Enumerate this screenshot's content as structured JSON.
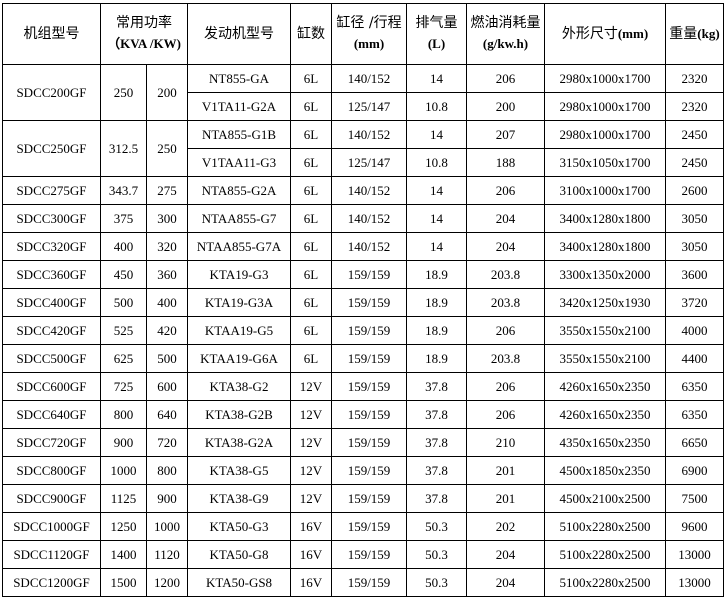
{
  "headers": {
    "model": "机组型号",
    "power": "常用功率",
    "power_unit": "（KVA /KW)",
    "engine": "发动机型号",
    "cylinders": "缸数",
    "bore": "缸径 /行程",
    "bore_unit": "(mm)",
    "displacement": "排气量",
    "displacement_unit": "(L)",
    "fuel": "燃油消耗量",
    "fuel_unit": "(g/kw.h)",
    "dimensions": "外形尺寸",
    "dimensions_unit": "(mm)",
    "weight": "重量",
    "weight_unit": "(kg)"
  },
  "groups": [
    {
      "model": "SDCC200GF",
      "kva": "250",
      "kw": "200",
      "engines": [
        {
          "engine": "NT855-GA",
          "cyl": "6L",
          "bore": "140/152",
          "disp": "14",
          "fuel": "206",
          "dim": "2980x1000x1700",
          "weight": "2320"
        },
        {
          "engine": "V1TA11-G2A",
          "cyl": "6L",
          "bore": "125/147",
          "disp": "10.8",
          "fuel": "200",
          "dim": "2980x1000x1700",
          "weight": "2320"
        }
      ]
    },
    {
      "model": "SDCC250GF",
      "kva": "312.5",
      "kw": "250",
      "engines": [
        {
          "engine": "NTA855-G1B",
          "cyl": "6L",
          "bore": "140/152",
          "disp": "14",
          "fuel": "207",
          "dim": "2980x1000x1700",
          "weight": "2450"
        },
        {
          "engine": "V1TAA11-G3",
          "cyl": "6L",
          "bore": "125/147",
          "disp": "10.8",
          "fuel": "188",
          "dim": "3150x1050x1700",
          "weight": "2450"
        }
      ]
    },
    {
      "model": "SDCC275GF",
      "kva": "343.7",
      "kw": "275",
      "engines": [
        {
          "engine": "NTA855-G2A",
          "cyl": "6L",
          "bore": "140/152",
          "disp": "14",
          "fuel": "206",
          "dim": "3100x1000x1700",
          "weight": "2600"
        }
      ]
    },
    {
      "model": "SDCC300GF",
      "kva": "375",
      "kw": "300",
      "engines": [
        {
          "engine": "NTAA855-G7",
          "cyl": "6L",
          "bore": "140/152",
          "disp": "14",
          "fuel": "204",
          "dim": "3400x1280x1800",
          "weight": "3050"
        }
      ]
    },
    {
      "model": "SDCC320GF",
      "kva": "400",
      "kw": "320",
      "engines": [
        {
          "engine": "NTAA855-G7A",
          "cyl": "6L",
          "bore": "140/152",
          "disp": "14",
          "fuel": "204",
          "dim": "3400x1280x1800",
          "weight": "3050"
        }
      ]
    },
    {
      "model": "SDCC360GF",
      "kva": "450",
      "kw": "360",
      "engines": [
        {
          "engine": "KTA19-G3",
          "cyl": "6L",
          "bore": "159/159",
          "disp": "18.9",
          "fuel": "203.8",
          "dim": "3300x1350x2000",
          "weight": "3600"
        }
      ]
    },
    {
      "model": "SDCC400GF",
      "kva": "500",
      "kw": "400",
      "engines": [
        {
          "engine": "KTA19-G3A",
          "cyl": "6L",
          "bore": "159/159",
          "disp": "18.9",
          "fuel": "203.8",
          "dim": "3420x1250x1930",
          "weight": "3720"
        }
      ]
    },
    {
      "model": "SDCC420GF",
      "kva": "525",
      "kw": "420",
      "engines": [
        {
          "engine": "KTAA19-G5",
          "cyl": "6L",
          "bore": "159/159",
          "disp": "18.9",
          "fuel": "206",
          "dim": "3550x1550x2100",
          "weight": "4000"
        }
      ]
    },
    {
      "model": "SDCC500GF",
      "kva": "625",
      "kw": "500",
      "engines": [
        {
          "engine": "KTAA19-G6A",
          "cyl": "6L",
          "bore": "159/159",
          "disp": "18.9",
          "fuel": "203.8",
          "dim": "3550x1550x2100",
          "weight": "4400"
        }
      ]
    },
    {
      "model": "SDCC600GF",
      "kva": "725",
      "kw": "600",
      "engines": [
        {
          "engine": "KTA38-G2",
          "cyl": "12V",
          "bore": "159/159",
          "disp": "37.8",
          "fuel": "206",
          "dim": "4260x1650x2350",
          "weight": "6350"
        }
      ]
    },
    {
      "model": "SDCC640GF",
      "kva": "800",
      "kw": "640",
      "engines": [
        {
          "engine": "KTA38-G2B",
          "cyl": "12V",
          "bore": "159/159",
          "disp": "37.8",
          "fuel": "206",
          "dim": "4260x1650x2350",
          "weight": "6350"
        }
      ]
    },
    {
      "model": "SDCC720GF",
      "kva": "900",
      "kw": "720",
      "engines": [
        {
          "engine": "KTA38-G2A",
          "cyl": "12V",
          "bore": "159/159",
          "disp": "37.8",
          "fuel": "210",
          "dim": "4350x1650x2350",
          "weight": "6650"
        }
      ]
    },
    {
      "model": "SDCC800GF",
      "kva": "1000",
      "kw": "800",
      "engines": [
        {
          "engine": "KTA38-G5",
          "cyl": "12V",
          "bore": "159/159",
          "disp": "37.8",
          "fuel": "201",
          "dim": "4500x1850x2350",
          "weight": "6900"
        }
      ]
    },
    {
      "model": "SDCC900GF",
      "kva": "1125",
      "kw": "900",
      "engines": [
        {
          "engine": "KTA38-G9",
          "cyl": "12V",
          "bore": "159/159",
          "disp": "37.8",
          "fuel": "201",
          "dim": "4500x2100x2500",
          "weight": "7500"
        }
      ]
    },
    {
      "model": "SDCC1000GF",
      "kva": "1250",
      "kw": "1000",
      "engines": [
        {
          "engine": "KTA50-G3",
          "cyl": "16V",
          "bore": "159/159",
          "disp": "50.3",
          "fuel": "202",
          "dim": "5100x2280x2500",
          "weight": "9600"
        }
      ]
    },
    {
      "model": "SDCC1120GF",
      "kva": "1400",
      "kw": "1120",
      "engines": [
        {
          "engine": "KTA50-G8",
          "cyl": "16V",
          "bore": "159/159",
          "disp": "50.3",
          "fuel": "204",
          "dim": "5100x2280x2500",
          "weight": "13000"
        }
      ]
    },
    {
      "model": "SDCC1200GF",
      "kva": "1500",
      "kw": "1200",
      "engines": [
        {
          "engine": "KTA50-GS8",
          "cyl": "16V",
          "bore": "159/159",
          "disp": "50.3",
          "fuel": "204",
          "dim": "5100x2280x2500",
          "weight": "13000"
        }
      ]
    }
  ]
}
